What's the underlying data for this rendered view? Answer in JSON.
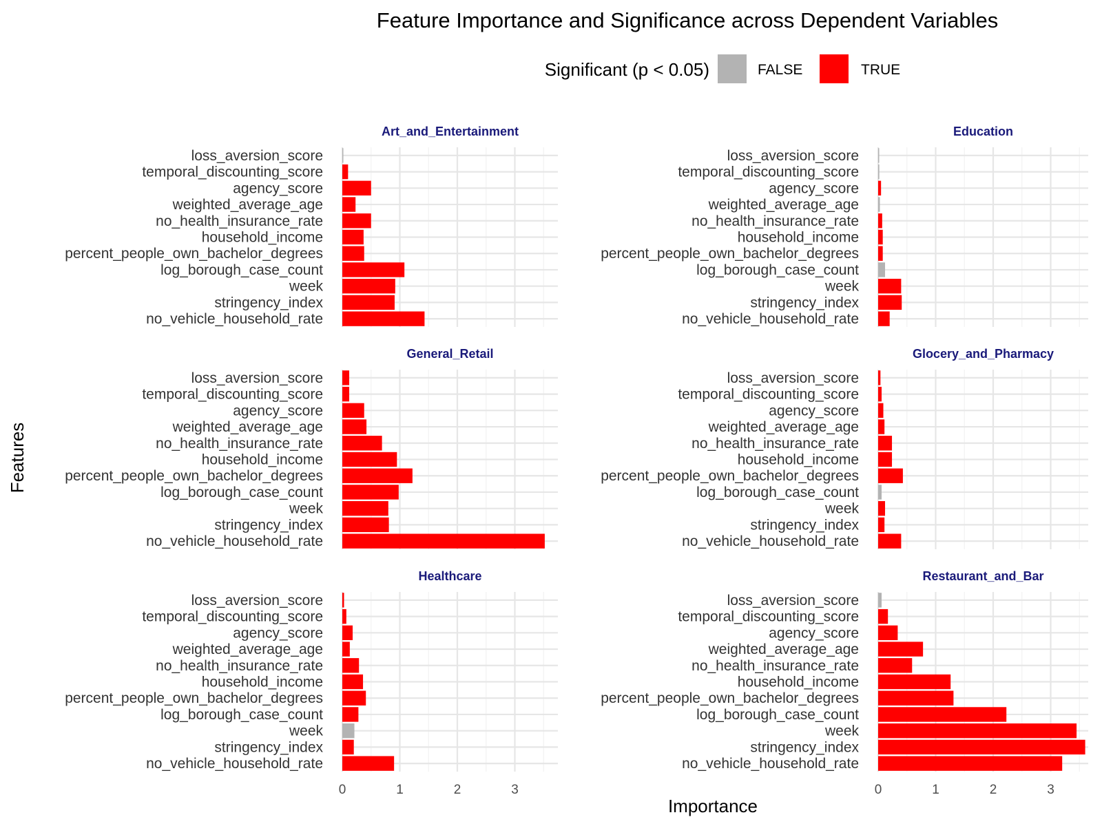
{
  "chart_data": {
    "type": "bar",
    "orientation": "horizontal",
    "title": "Feature Importance and Significance across Dependent Variables",
    "xlabel": "Importance",
    "ylabel": "Features",
    "xlim": [
      0,
      3.6
    ],
    "x_ticks": [
      0,
      1,
      2,
      3
    ],
    "grid": true,
    "legend": {
      "title": "Significant (p < 0.05)",
      "position": "top",
      "entries": [
        {
          "label": "FALSE",
          "color": "#b3b3b3"
        },
        {
          "label": "TRUE",
          "color": "#ff0000"
        }
      ]
    },
    "features": [
      "loss_aversion_score",
      "temporal_discounting_score",
      "agency_score",
      "weighted_average_age",
      "no_health_insurance_rate",
      "household_income",
      "percent_people_own_bachelor_degrees",
      "log_borough_case_count",
      "week",
      "stringency_index",
      "no_vehicle_household_rate"
    ],
    "facets": [
      {
        "name": "Art_and_Entertainment",
        "values": [
          0.01,
          0.1,
          0.5,
          0.23,
          0.5,
          0.37,
          0.38,
          1.08,
          0.92,
          0.91,
          1.43
        ],
        "significant": [
          false,
          true,
          true,
          true,
          true,
          true,
          true,
          true,
          true,
          true,
          true
        ]
      },
      {
        "name": "Education",
        "values": [
          0.01,
          0.02,
          0.05,
          0.03,
          0.07,
          0.08,
          0.08,
          0.12,
          0.4,
          0.41,
          0.2
        ],
        "significant": [
          false,
          false,
          true,
          false,
          true,
          true,
          true,
          false,
          true,
          true,
          true
        ]
      },
      {
        "name": "General_Retail",
        "values": [
          0.12,
          0.12,
          0.38,
          0.42,
          0.69,
          0.95,
          1.22,
          0.98,
          0.8,
          0.81,
          3.52
        ],
        "significant": [
          true,
          true,
          true,
          true,
          true,
          true,
          true,
          true,
          true,
          true,
          true
        ]
      },
      {
        "name": "Glocery_and_Pharmacy",
        "values": [
          0.04,
          0.06,
          0.09,
          0.11,
          0.24,
          0.24,
          0.43,
          0.06,
          0.12,
          0.11,
          0.4
        ],
        "significant": [
          true,
          true,
          true,
          true,
          true,
          true,
          true,
          false,
          true,
          true,
          true
        ]
      },
      {
        "name": "Healthcare",
        "values": [
          0.03,
          0.07,
          0.18,
          0.13,
          0.29,
          0.36,
          0.41,
          0.28,
          0.21,
          0.2,
          0.9
        ],
        "significant": [
          true,
          true,
          true,
          true,
          true,
          true,
          true,
          true,
          false,
          true,
          true
        ]
      },
      {
        "name": "Restaurant_and_Bar",
        "values": [
          0.06,
          0.17,
          0.34,
          0.78,
          0.59,
          1.26,
          1.31,
          2.23,
          3.45,
          3.6,
          3.2
        ],
        "significant": [
          false,
          true,
          true,
          true,
          true,
          true,
          true,
          true,
          true,
          true,
          true
        ]
      }
    ]
  }
}
